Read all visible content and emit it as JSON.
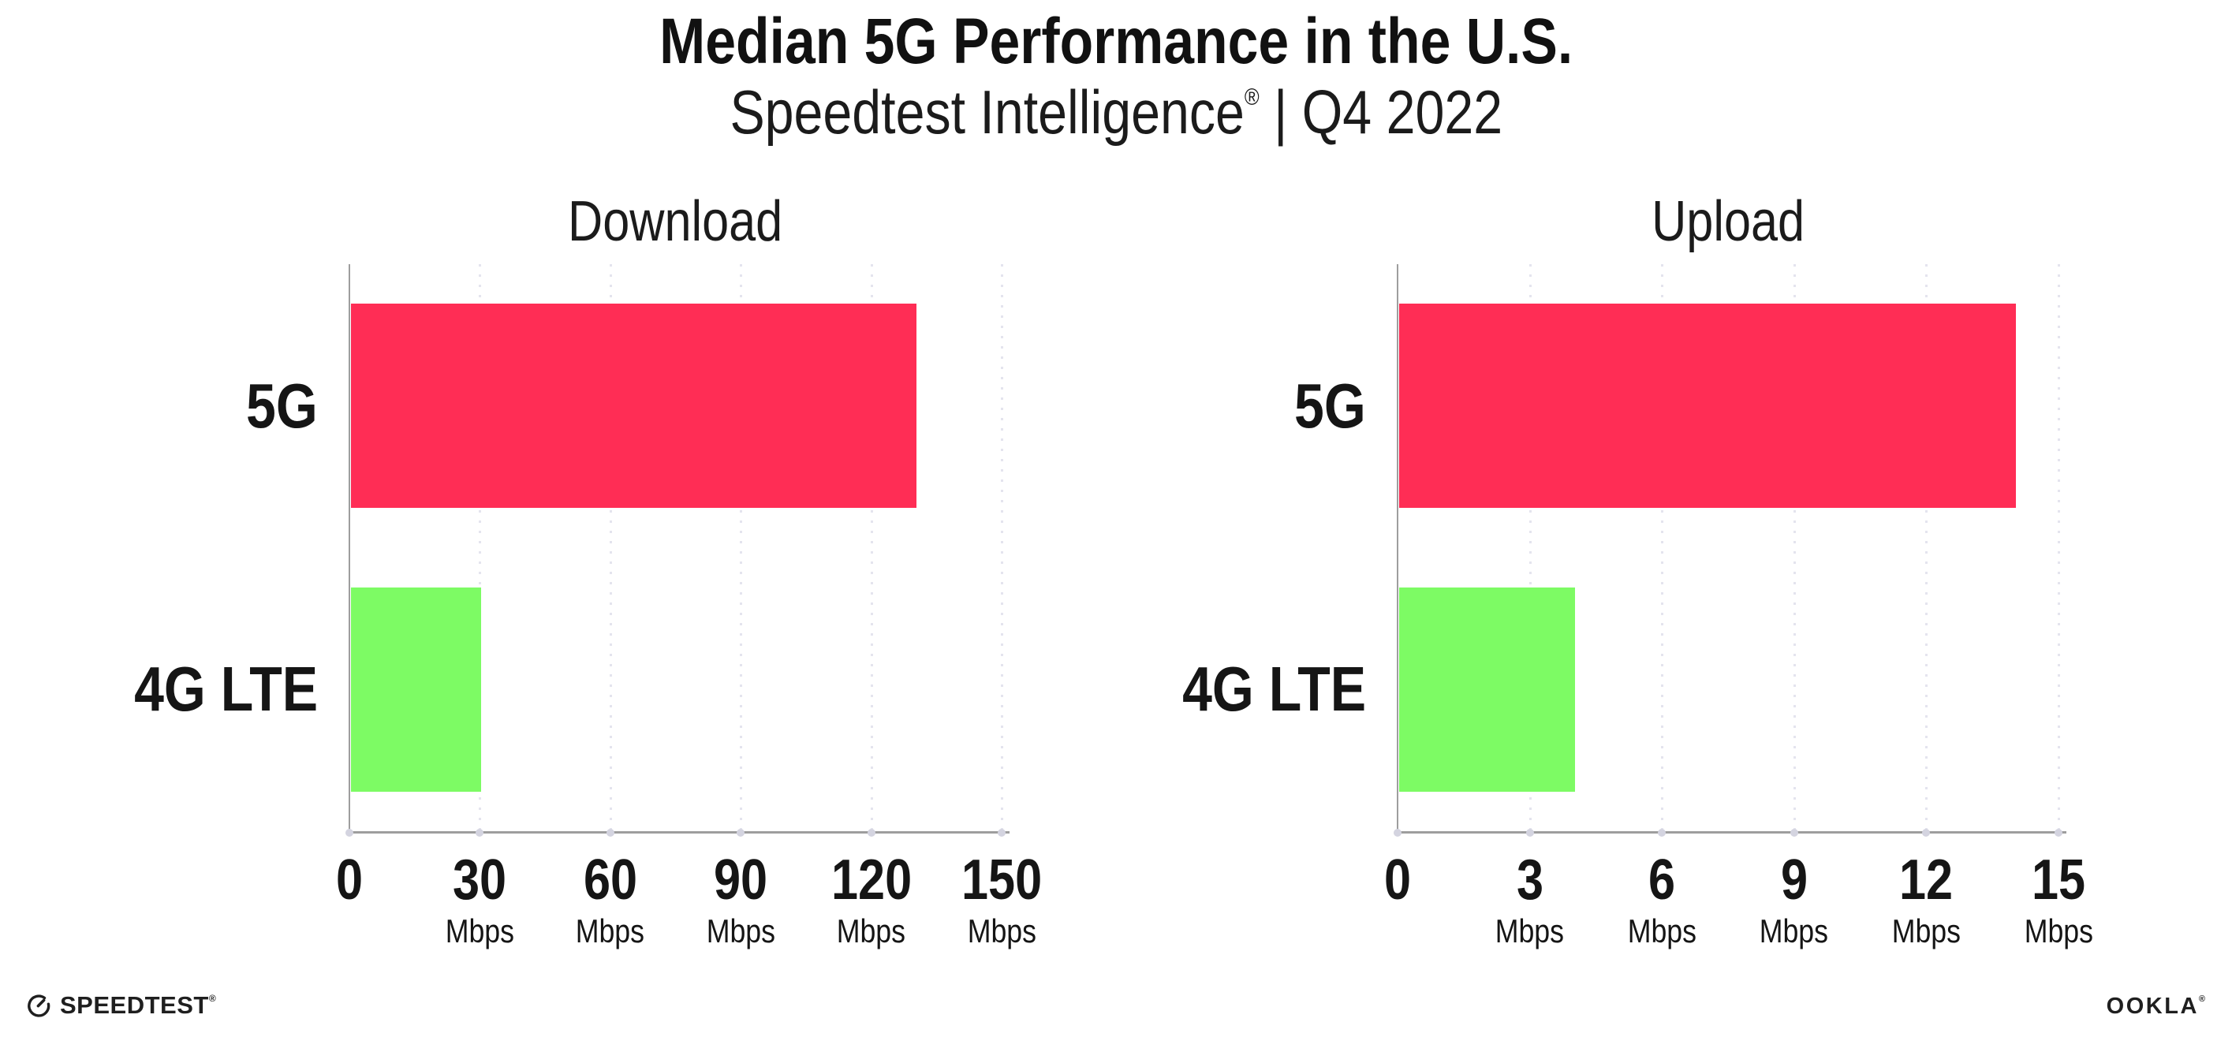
{
  "header": {
    "title": "Median 5G Performance in the U.S.",
    "subtitle_product": "Speedtest Intelligence",
    "subtitle_reg": "®",
    "subtitle_rest": " | Q4 2022"
  },
  "chart_data": [
    {
      "type": "bar",
      "orientation": "horizontal",
      "title": "Download",
      "categories": [
        "5G",
        "4G LTE"
      ],
      "values": [
        130,
        30
      ],
      "unit": "Mbps",
      "xlabel": "",
      "ylabel": "",
      "xlim": [
        0,
        150
      ],
      "xticks": [
        0,
        30,
        60,
        90,
        120,
        150
      ],
      "bar_colors": [
        "#ff2d55",
        "#7dfb64"
      ],
      "grid": "dotted-vertical",
      "legend": "none"
    },
    {
      "type": "bar",
      "orientation": "horizontal",
      "title": "Upload",
      "categories": [
        "5G",
        "4G LTE"
      ],
      "values": [
        14,
        4
      ],
      "unit": "Mbps",
      "xlabel": "",
      "ylabel": "",
      "xlim": [
        0,
        15
      ],
      "xticks": [
        0,
        3,
        6,
        9,
        12,
        15
      ],
      "bar_colors": [
        "#ff2d55",
        "#7dfb64"
      ],
      "grid": "dotted-vertical",
      "legend": "none"
    }
  ],
  "footer": {
    "speedtest_label": "SPEEDTEST",
    "speedtest_mark": "®",
    "ookla_label": "OOKLA",
    "ookla_mark": "®"
  },
  "colors": {
    "bar_5g": "#ff2d55",
    "bar_4g_lte": "#7dfb64",
    "axis": "#9e9e9e",
    "gridline": "#e4e4ee",
    "tick_dot": "#d4d4e0",
    "text": "#151515",
    "background": "#ffffff"
  }
}
